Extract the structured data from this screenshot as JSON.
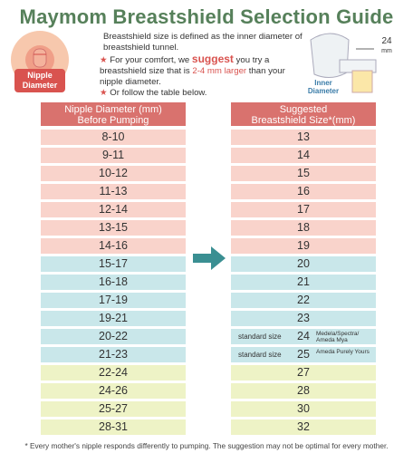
{
  "header": {
    "title": "Maymom Breastshield Selection Guide"
  },
  "diagram": {
    "nipple_label_1": "Nipple",
    "nipple_label_2": "Diameter",
    "shield_size": "24",
    "shield_unit": "mm",
    "inner_label_1": "Inner",
    "inner_label_2": "Diameter"
  },
  "intro": {
    "definition": "Breastshield size is defined as the inner diameter of breastshield tunnel.",
    "tip_before": "For your comfort, we ",
    "tip_emphasis": "suggest",
    "tip_middle": " you try a breastshield size that is ",
    "tip_highlight": "2-4 mm larger",
    "tip_after": " than your nipple diameter.",
    "table_hint": "Or follow the table below."
  },
  "table": {
    "left_header": [
      "Nipple Diameter (mm)",
      "Before Pumping"
    ],
    "right_header": [
      "Suggested",
      "Breastshield Size*(mm)"
    ],
    "rows": [
      {
        "nipple": "8-10",
        "size": 13
      },
      {
        "nipple": "9-11",
        "size": 14
      },
      {
        "nipple": "10-12",
        "size": 15
      },
      {
        "nipple": "11-13",
        "size": 16
      },
      {
        "nipple": "12-14",
        "size": 17
      },
      {
        "nipple": "13-15",
        "size": 18
      },
      {
        "nipple": "14-16",
        "size": 19
      },
      {
        "nipple": "15-17",
        "size": 20
      },
      {
        "nipple": "16-18",
        "size": 21
      },
      {
        "nipple": "17-19",
        "size": 22
      },
      {
        "nipple": "19-21",
        "size": 23
      },
      {
        "nipple": "20-22",
        "size": 24,
        "prefix": "standard size",
        "note": "Medela/Spectra/ Ameda Mya"
      },
      {
        "nipple": "21-23",
        "size": 25,
        "prefix": "standard size",
        "note": "Ameda Purely Yours"
      },
      {
        "nipple": "22-24",
        "size": 27
      },
      {
        "nipple": "24-26",
        "size": 28
      },
      {
        "nipple": "25-27",
        "size": 30
      },
      {
        "nipple": "28-31",
        "size": 32
      }
    ]
  },
  "footnote": "* Every mother's nipple responds differently to pumping. The suggestion may not be optimal for every mother."
}
